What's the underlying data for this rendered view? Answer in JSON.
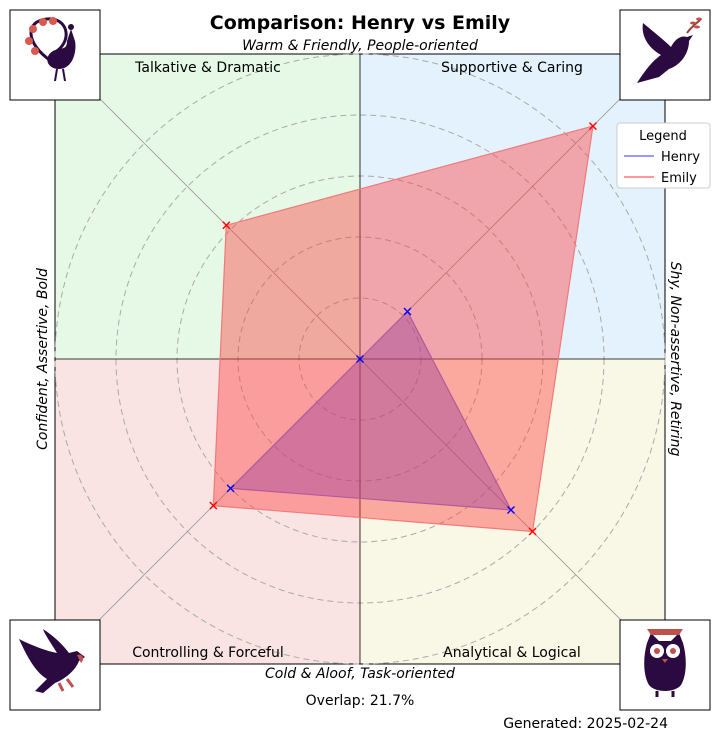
{
  "chart_data": {
    "type": "radar",
    "title": "Comparison: Henry vs Emily",
    "axis_labels": {
      "top": "Warm & Friendly, People-oriented",
      "bottom": "Cold & Aloof, Task-oriented",
      "left": "Confident, Assertive, Bold",
      "right": "Shy, Non-assertive, Retiring"
    },
    "quadrants": [
      {
        "name": "Talkative & Dramatic",
        "position": "top-left",
        "color": "#e6f9e6",
        "icon": "peacock-icon"
      },
      {
        "name": "Supportive & Caring",
        "position": "top-right",
        "color": "#e3f2fc",
        "icon": "dove-icon"
      },
      {
        "name": "Controlling & Forceful",
        "position": "bottom-left",
        "color": "#f9e3e3",
        "icon": "eagle-icon"
      },
      {
        "name": "Analytical & Logical",
        "position": "bottom-right",
        "color": "#f9f8e6",
        "icon": "owl-icon"
      }
    ],
    "directions": [
      "Supportive & Caring",
      "Analytical & Logical",
      "Controlling & Forceful",
      "Talkative & Dramatic"
    ],
    "radial_range": [
      0,
      5
    ],
    "grid": true,
    "legend": {
      "title": "Legend",
      "placement": "top-right"
    },
    "series": [
      {
        "name": "Henry",
        "values": [
          1.1,
          3.5,
          3.0,
          0.0
        ],
        "color": "#0000ff"
      },
      {
        "name": "Emily",
        "values": [
          5.4,
          4.0,
          3.4,
          3.1
        ],
        "color": "#ff0000"
      }
    ],
    "annotations": {
      "overlap": "Overlap: 21.7%",
      "generated": "Generated: 2025-02-24"
    }
  }
}
